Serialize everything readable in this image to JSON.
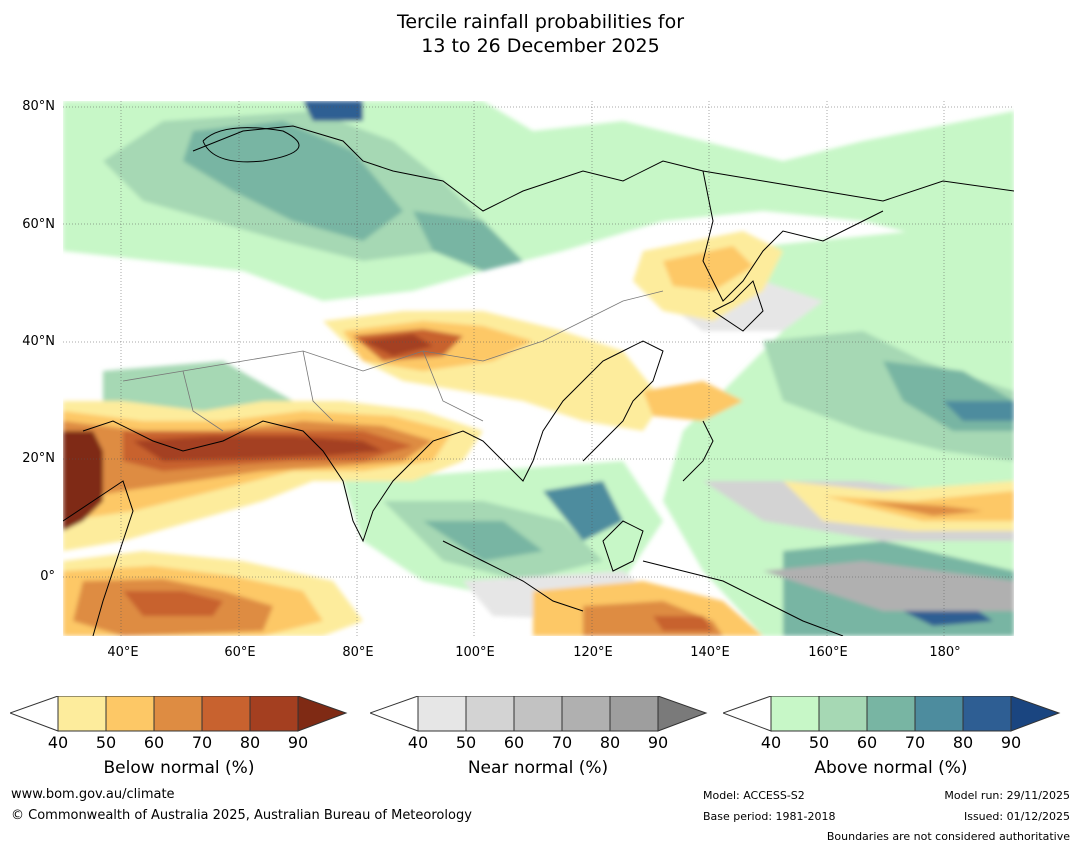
{
  "title": {
    "line1": "Tercile rainfall probabilities for",
    "line2": "13 to 26 December 2025"
  },
  "axes": {
    "lat_labels": [
      "80°N",
      "60°N",
      "40°N",
      "20°N",
      "0°"
    ],
    "lon_labels": [
      "40°E",
      "60°E",
      "80°E",
      "100°E",
      "120°E",
      "140°E",
      "160°E",
      "180°"
    ]
  },
  "colorbars": [
    {
      "name": "below",
      "title": "Below normal (%)",
      "ticks": [
        "40",
        "50",
        "60",
        "70",
        "80",
        "90"
      ],
      "colors": [
        "#fdec9c",
        "#fdc866",
        "#de8c42",
        "#c8622f",
        "#a43f20",
        "#7f2a14"
      ]
    },
    {
      "name": "near",
      "title": "Near normal (%)",
      "ticks": [
        "40",
        "50",
        "60",
        "70",
        "80",
        "90"
      ],
      "colors": [
        "#e6e6e6",
        "#d3d3d3",
        "#c2c2c2",
        "#b0b0b0",
        "#9e9e9e",
        "#7a7a7a"
      ]
    },
    {
      "name": "above",
      "title": "Above normal (%)",
      "ticks": [
        "40",
        "50",
        "60",
        "70",
        "80",
        "90"
      ],
      "colors": [
        "#c7f7c7",
        "#a6d8b4",
        "#78b5a3",
        "#4d8c9e",
        "#2e5e93",
        "#1a4580"
      ]
    }
  ],
  "footer": {
    "website": "www.bom.gov.au/climate",
    "copyright": "© Commonwealth of Australia 2025, Australian Bureau of Meteorology",
    "model": "Model: ACCESS-S2",
    "base_period": "Base period: 1981-2018",
    "model_run": "Model run: 29/11/2025",
    "issued": "Issued: 01/12/2025",
    "disclaimer": "Boundaries are not considered authoritative"
  }
}
